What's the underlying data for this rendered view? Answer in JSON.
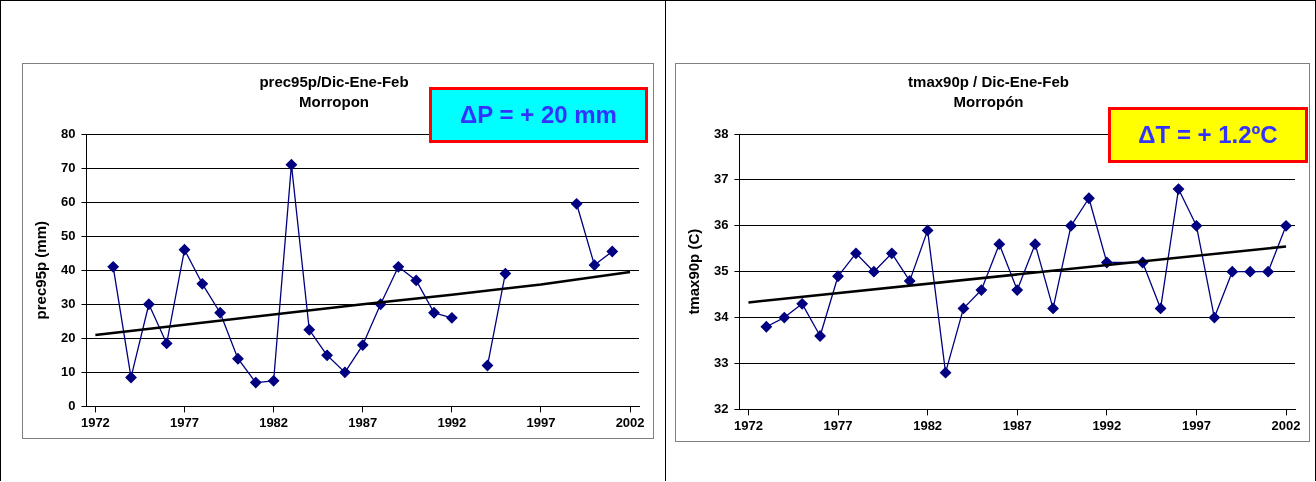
{
  "chart_data": [
    {
      "type": "line",
      "title": "prec95p/Dic-Ene-Feb",
      "subtitle": "Morropon",
      "ylabel": "prec95p (mm)",
      "annotations": [
        "ΔP = + 20 mm"
      ],
      "xlim": [
        1971.5,
        2002.5
      ],
      "xticks": [
        1972,
        1977,
        1982,
        1987,
        1992,
        1997,
        2002
      ],
      "ylim": [
        0,
        80
      ],
      "yticks": [
        0,
        10,
        20,
        30,
        40,
        50,
        60,
        70,
        80
      ],
      "grid": "y",
      "legend": false,
      "series": [
        {
          "color": "#000080",
          "marker": "diamond",
          "x": [
            1973,
            1974,
            1975,
            1976,
            1977,
            1978,
            1979,
            1980,
            1981,
            1982,
            1983,
            1984,
            1985,
            1986,
            1987,
            1988,
            1989,
            1990,
            1991,
            1992,
            1993,
            1994,
            1995,
            1996,
            1997,
            1998,
            1999,
            2000,
            2001
          ],
          "values": [
            41,
            8.5,
            30,
            18.5,
            46,
            36,
            27.5,
            14,
            7,
            7.5,
            71,
            22.5,
            15,
            10,
            18,
            30,
            41,
            37,
            27.5,
            26,
            null,
            12,
            39,
            null,
            null,
            null,
            59.5,
            41.5,
            45.5
          ]
        },
        {
          "color": "#000000",
          "marker": "none",
          "x": [
            1972,
            1977,
            1982,
            1987,
            1992,
            1997,
            2002
          ],
          "values": [
            21,
            24,
            27,
            30,
            32.8,
            35.8,
            39.5
          ]
        }
      ]
    },
    {
      "type": "line",
      "title": "tmax90p / Dic-Ene-Feb",
      "subtitle": "Morropón",
      "ylabel": "tmax90p (C)",
      "annotations": [
        "ΔT = + 1.2ºC"
      ],
      "xlim": [
        1971.5,
        2002.5
      ],
      "xticks": [
        1972,
        1977,
        1982,
        1987,
        1992,
        1997,
        2002
      ],
      "ylim": [
        32,
        38
      ],
      "yticks": [
        32,
        33,
        34,
        35,
        36,
        37,
        38
      ],
      "grid": "y",
      "legend": false,
      "series": [
        {
          "color": "#000080",
          "marker": "diamond",
          "x": [
            1973,
            1974,
            1975,
            1976,
            1977,
            1978,
            1979,
            1980,
            1981,
            1982,
            1983,
            1984,
            1985,
            1986,
            1987,
            1988,
            1989,
            1990,
            1991,
            1992,
            1994,
            1995,
            1996,
            1997,
            1998,
            1999,
            2000,
            2001,
            2002
          ],
          "values": [
            33.8,
            34,
            34.3,
            33.6,
            34.9,
            35.4,
            35,
            35.4,
            34.8,
            35.9,
            32.8,
            34.2,
            34.6,
            35.6,
            34.6,
            35.6,
            34.2,
            36,
            36.6,
            35.2,
            35.2,
            34.2,
            36.8,
            36,
            34,
            35,
            35,
            35,
            36
          ]
        },
        {
          "color": "#000000",
          "marker": "none",
          "x": [
            1972,
            2002
          ],
          "values": [
            34.33,
            35.55
          ]
        }
      ]
    }
  ]
}
